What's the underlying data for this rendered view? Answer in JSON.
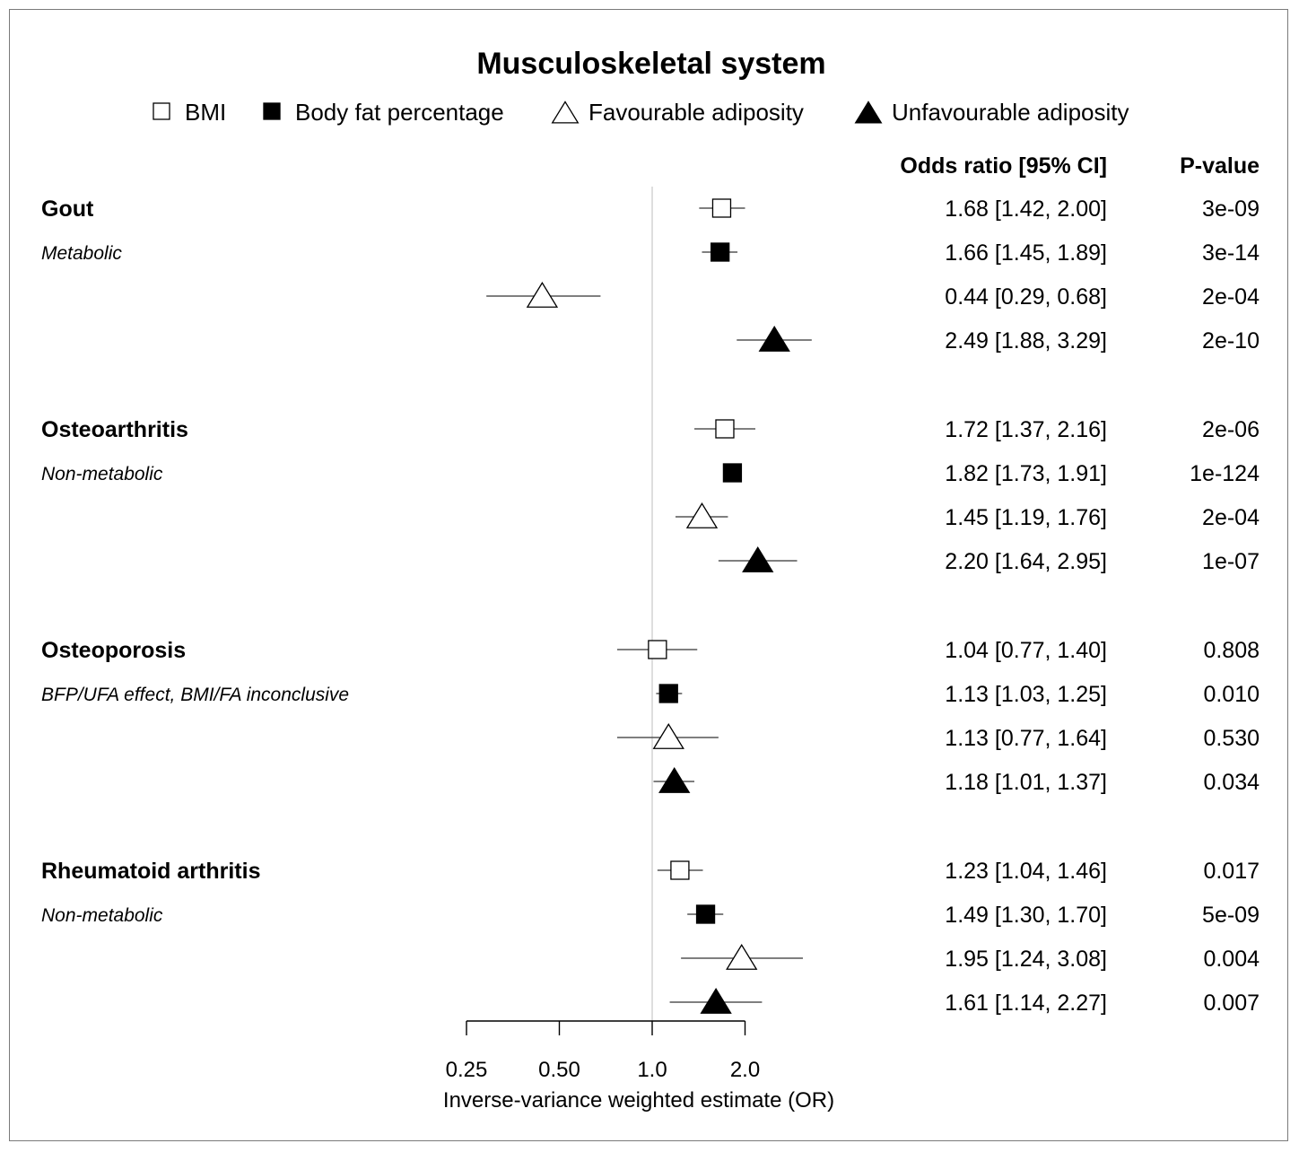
{
  "chart_data": {
    "type": "forest",
    "title": "Musculoskeletal system",
    "legend": [
      {
        "name": "BMI",
        "marker": "square",
        "fill": "open"
      },
      {
        "name": "Body fat percentage",
        "marker": "square",
        "fill": "filled"
      },
      {
        "name": "Favourable adiposity",
        "marker": "triangle",
        "fill": "open"
      },
      {
        "name": "Unfavourable adiposity",
        "marker": "triangle",
        "fill": "filled"
      }
    ],
    "legend_position": "top-center",
    "column_headers": {
      "estimate": "Odds ratio [95% CI]",
      "pvalue": "P-value"
    },
    "xlabel": "Inverse-variance weighted estimate (OR)",
    "x_scale": "log",
    "xlim": [
      0.25,
      2.0
    ],
    "reference_line": 1.0,
    "x_ticks": [
      {
        "value": 0.25,
        "label": "0.25"
      },
      {
        "value": 0.5,
        "label": "0.50"
      },
      {
        "value": 1.0,
        "label": "1.0"
      },
      {
        "value": 2.0,
        "label": "2.0"
      }
    ],
    "groups": [
      {
        "outcome": "Gout",
        "subtitle": "Metabolic",
        "rows": [
          {
            "series": "BMI",
            "or": 1.68,
            "lo": 1.42,
            "hi": 2.0,
            "label": "1.68 [1.42, 2.00]",
            "p": "3e-09"
          },
          {
            "series": "Body fat percentage",
            "or": 1.66,
            "lo": 1.45,
            "hi": 1.89,
            "label": "1.66 [1.45, 1.89]",
            "p": "3e-14"
          },
          {
            "series": "Favourable adiposity",
            "or": 0.44,
            "lo": 0.29,
            "hi": 0.68,
            "label": "0.44 [0.29, 0.68]",
            "p": "2e-04"
          },
          {
            "series": "Unfavourable adiposity",
            "or": 2.49,
            "lo": 1.88,
            "hi": 3.29,
            "label": "2.49 [1.88, 3.29]",
            "p": "2e-10"
          }
        ]
      },
      {
        "outcome": "Osteoarthritis",
        "subtitle": "Non-metabolic",
        "rows": [
          {
            "series": "BMI",
            "or": 1.72,
            "lo": 1.37,
            "hi": 2.16,
            "label": "1.72 [1.37, 2.16]",
            "p": "2e-06"
          },
          {
            "series": "Body fat percentage",
            "or": 1.82,
            "lo": 1.73,
            "hi": 1.91,
            "label": "1.82 [1.73, 1.91]",
            "p": "1e-124"
          },
          {
            "series": "Favourable adiposity",
            "or": 1.45,
            "lo": 1.19,
            "hi": 1.76,
            "label": "1.45 [1.19, 1.76]",
            "p": "2e-04"
          },
          {
            "series": "Unfavourable adiposity",
            "or": 2.2,
            "lo": 1.64,
            "hi": 2.95,
            "label": "2.20 [1.64, 2.95]",
            "p": "1e-07"
          }
        ]
      },
      {
        "outcome": "Osteoporosis",
        "subtitle": "BFP/UFA effect, BMI/FA inconclusive",
        "rows": [
          {
            "series": "BMI",
            "or": 1.04,
            "lo": 0.77,
            "hi": 1.4,
            "label": "1.04 [0.77, 1.40]",
            "p": "0.808"
          },
          {
            "series": "Body fat percentage",
            "or": 1.13,
            "lo": 1.03,
            "hi": 1.25,
            "label": "1.13 [1.03, 1.25]",
            "p": "0.010"
          },
          {
            "series": "Favourable adiposity",
            "or": 1.13,
            "lo": 0.77,
            "hi": 1.64,
            "label": "1.13 [0.77, 1.64]",
            "p": "0.530"
          },
          {
            "series": "Unfavourable adiposity",
            "or": 1.18,
            "lo": 1.01,
            "hi": 1.37,
            "label": "1.18 [1.01, 1.37]",
            "p": "0.034"
          }
        ]
      },
      {
        "outcome": "Rheumatoid arthritis",
        "subtitle": "Non-metabolic",
        "rows": [
          {
            "series": "BMI",
            "or": 1.23,
            "lo": 1.04,
            "hi": 1.46,
            "label": "1.23 [1.04, 1.46]",
            "p": "0.017"
          },
          {
            "series": "Body fat percentage",
            "or": 1.49,
            "lo": 1.3,
            "hi": 1.7,
            "label": "1.49 [1.30, 1.70]",
            "p": "5e-09"
          },
          {
            "series": "Favourable adiposity",
            "or": 1.95,
            "lo": 1.24,
            "hi": 3.08,
            "label": "1.95 [1.24, 3.08]",
            "p": "0.004"
          },
          {
            "series": "Unfavourable adiposity",
            "or": 1.61,
            "lo": 1.14,
            "hi": 2.27,
            "label": "1.61 [1.14, 2.27]",
            "p": "0.007"
          }
        ]
      }
    ],
    "colors": {
      "marker": "#000000",
      "ci_line": "#555555",
      "reference": "#d4d4d4",
      "axis": "#000000"
    }
  }
}
